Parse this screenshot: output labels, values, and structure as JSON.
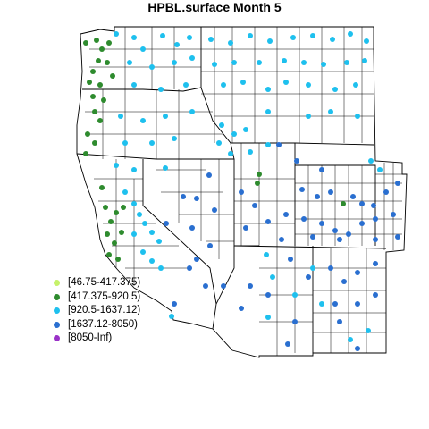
{
  "title": "HPBL.surface Month 5",
  "legend": [
    {
      "label": "[46.75-417.375)",
      "color": "#c6f26a"
    },
    {
      "label": "[417.375-920.5)",
      "color": "#2e8b2e"
    },
    {
      "label": "[920.5-1637.12)",
      "color": "#1ec0ee"
    },
    {
      "label": "[1637.12-8050)",
      "color": "#2a6fd0"
    },
    {
      "label": "[8050-Inf)",
      "color": "#9a32c8"
    }
  ],
  "map_data": {
    "region": "Western United States counties",
    "states_shown": [
      "WA",
      "OR",
      "CA",
      "ID",
      "NV",
      "UT",
      "AZ",
      "MT",
      "WY",
      "CO",
      "NM"
    ],
    "bins": [
      "[46.75-417.375)",
      "[417.375-920.5)",
      "[920.5-1637.12)",
      "[1637.12-8050)",
      "[8050-Inf)"
    ],
    "dominant_bin_by_area": {
      "pacific_coast": "[417.375-920.5)",
      "interior_northwest": "[920.5-1637.12)",
      "great_basin_and_southwest": "[1637.12-8050)",
      "colorado_plateau_and_rockies": "[1637.12-8050)"
    }
  }
}
